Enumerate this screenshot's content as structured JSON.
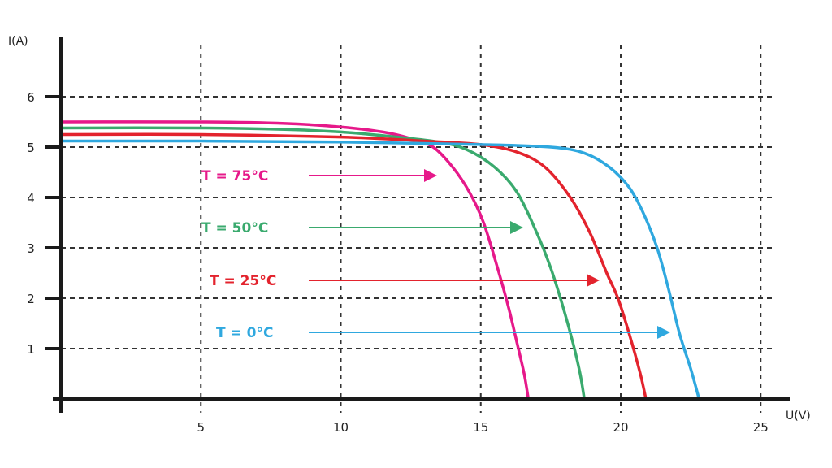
{
  "chart_data": {
    "type": "line",
    "title": "",
    "xlabel": "U(V)",
    "ylabel": "I(A)",
    "xlim": [
      0,
      26
    ],
    "ylim": [
      0,
      6.5
    ],
    "x_ticks": [
      5,
      10,
      15,
      20,
      25
    ],
    "y_ticks": [
      1,
      2,
      3,
      4,
      5,
      6
    ],
    "grid": true,
    "legend_position": "inline-left with arrows",
    "series": [
      {
        "name": "T = 75°C",
        "color": "#e6198a",
        "points": [
          [
            0,
            5.5
          ],
          [
            5,
            5.5
          ],
          [
            8,
            5.47
          ],
          [
            10,
            5.4
          ],
          [
            11.5,
            5.3
          ],
          [
            12.5,
            5.17
          ],
          [
            13.3,
            5.0
          ],
          [
            14,
            4.6
          ],
          [
            14.6,
            4.1
          ],
          [
            15.1,
            3.5
          ],
          [
            15.6,
            2.6
          ],
          [
            16.0,
            1.8
          ],
          [
            16.3,
            1.1
          ],
          [
            16.55,
            0.5
          ],
          [
            16.7,
            0
          ]
        ]
      },
      {
        "name": "T = 50°C",
        "color": "#3aaa6e",
        "points": [
          [
            0,
            5.38
          ],
          [
            5,
            5.38
          ],
          [
            8,
            5.35
          ],
          [
            10,
            5.3
          ],
          [
            12,
            5.2
          ],
          [
            13.5,
            5.1
          ],
          [
            14.5,
            4.95
          ],
          [
            15.5,
            4.6
          ],
          [
            16.3,
            4.1
          ],
          [
            17.0,
            3.3
          ],
          [
            17.5,
            2.6
          ],
          [
            17.9,
            1.9
          ],
          [
            18.3,
            1.1
          ],
          [
            18.55,
            0.5
          ],
          [
            18.7,
            0
          ]
        ]
      },
      {
        "name": "T = 25°C",
        "color": "#e3232d",
        "points": [
          [
            0,
            5.25
          ],
          [
            5,
            5.25
          ],
          [
            10,
            5.2
          ],
          [
            13,
            5.12
          ],
          [
            15,
            5.05
          ],
          [
            16.3,
            4.9
          ],
          [
            17.3,
            4.6
          ],
          [
            18.2,
            4.0
          ],
          [
            18.9,
            3.3
          ],
          [
            19.5,
            2.5
          ],
          [
            19.9,
            2.0
          ],
          [
            20.3,
            1.3
          ],
          [
            20.7,
            0.5
          ],
          [
            20.9,
            0
          ]
        ]
      },
      {
        "name": "T = 0°C",
        "color": "#2fa8df",
        "points": [
          [
            0,
            5.12
          ],
          [
            5,
            5.12
          ],
          [
            10,
            5.1
          ],
          [
            15,
            5.05
          ],
          [
            17.5,
            5.0
          ],
          [
            18.7,
            4.88
          ],
          [
            19.6,
            4.6
          ],
          [
            20.3,
            4.2
          ],
          [
            20.8,
            3.7
          ],
          [
            21.3,
            3.0
          ],
          [
            21.7,
            2.2
          ],
          [
            22.1,
            1.3
          ],
          [
            22.5,
            0.6
          ],
          [
            22.8,
            0
          ]
        ]
      }
    ]
  },
  "axes": {
    "x_label": "U(V)",
    "y_label": "I(A)",
    "x_tick_labels": [
      "5",
      "10",
      "15",
      "20",
      "25"
    ],
    "y_tick_labels": [
      "1",
      "2",
      "3",
      "4",
      "5",
      "6"
    ]
  },
  "legend": [
    {
      "label": "T = 75°C",
      "color": "#e6198a"
    },
    {
      "label": "T = 50°C",
      "color": "#3aaa6e"
    },
    {
      "label": "T = 25°C",
      "color": "#e3232d"
    },
    {
      "label": "T = 0°C",
      "color": "#2fa8df"
    }
  ]
}
